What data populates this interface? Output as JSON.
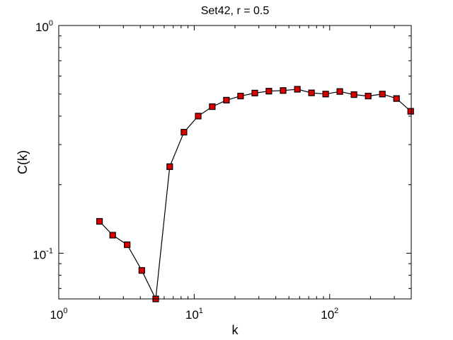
{
  "chart_data": {
    "type": "line",
    "title": "Set42, r = 0.5",
    "xlabel": "k",
    "ylabel": "C(k)",
    "xscale": "log",
    "yscale": "log",
    "xlim": [
      1,
      400
    ],
    "ylim": [
      0.063,
      1
    ],
    "grid": false,
    "legend": "none",
    "x_ticks": [
      {
        "value": 1,
        "base": "10",
        "exp": "0"
      },
      {
        "value": 10,
        "base": "10",
        "exp": "1"
      },
      {
        "value": 100,
        "base": "10",
        "exp": "2"
      }
    ],
    "y_ticks": [
      {
        "value": 0.1,
        "base": "10",
        "exp": "-1"
      },
      {
        "value": 1,
        "base": "10",
        "exp": "0"
      }
    ],
    "series": [
      {
        "x": [
          2,
          2.5,
          3.2,
          4.1,
          5.2,
          6.6,
          8.4,
          10.7,
          13.6,
          17.3,
          22,
          28,
          35.6,
          45.3,
          57.7,
          73.4,
          93.4,
          118.8,
          151.2,
          192.4,
          244.8,
          311.5,
          396.4
        ],
        "y": [
          0.138,
          0.12,
          0.109,
          0.084,
          0.063,
          0.24,
          0.34,
          0.4,
          0.44,
          0.47,
          0.49,
          0.505,
          0.515,
          0.518,
          0.525,
          0.506,
          0.5,
          0.513,
          0.497,
          0.49,
          0.5,
          0.478,
          0.42
        ],
        "color": "#000000",
        "marker": "square",
        "marker_fill": "#dd0000",
        "marker_edge": "#000000"
      }
    ]
  }
}
